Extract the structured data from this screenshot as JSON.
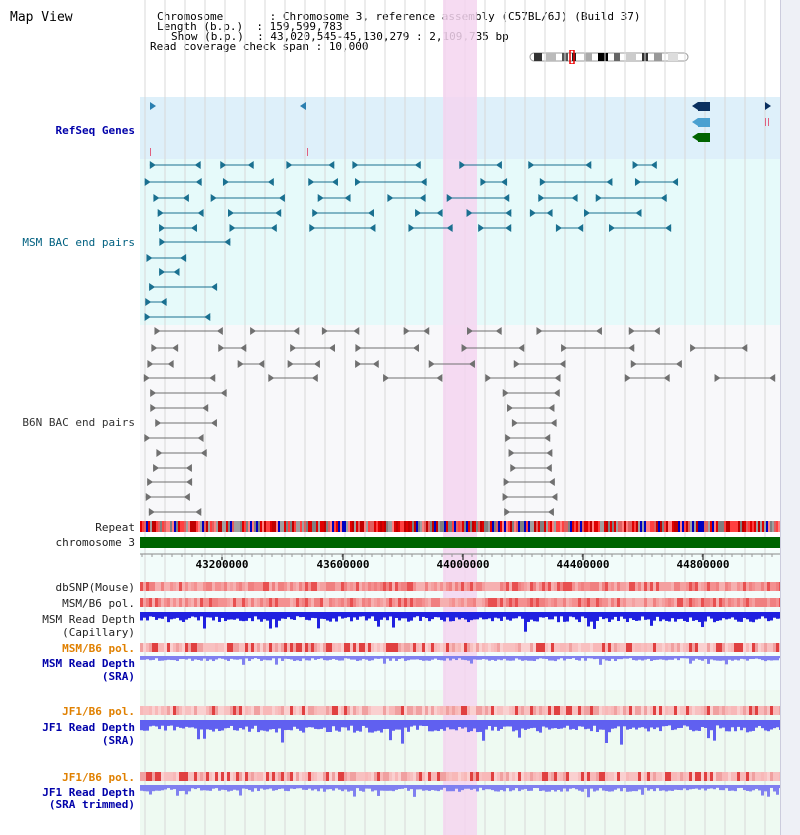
{
  "page_title": "Map View",
  "header": {
    "chromosome_label": "Chromosome       : ",
    "chromosome_value": "Chromosome 3, reference assembly (C57BL/6J) (Build 37)",
    "length_label": "Length (b.p.)  : ",
    "length_value": "159,599,783",
    "show_label": "Show (b.p.)  : ",
    "show_value": "43,020,545-45,130,279 : 2,109,735 bp",
    "coverage_label": "Read coverage check span : ",
    "coverage_value": "10,000"
  },
  "tracks": {
    "refseq": "RefSeq Genes",
    "msm_bac": "MSM BAC end pairs",
    "b6n_bac": "B6N BAC end pairs",
    "repeat": "Repeat",
    "chromosome": "chromosome 3",
    "dbsnp": "dbSNP(Mouse)",
    "msm_b6_pol_1": "MSM/B6 pol.",
    "msm_depth_cap_1": "MSM Read Depth",
    "msm_depth_cap_2": "(Capillary)",
    "msm_b6_pol_2": "MSM/B6 pol.",
    "msm_depth_sra_1": "MSM Read Depth",
    "msm_depth_sra_2": "(SRA)",
    "jf1_b6_pol_1": "JF1/B6 pol.",
    "jf1_depth_sra_1": "JF1 Read Depth",
    "jf1_depth_sra_2": "(SRA)",
    "jf1_b6_pol_2": "JF1/B6 pol.",
    "jf1_depth_trim_1": "JF1 Read Depth",
    "jf1_depth_trim_2": "(SRA trimmed)"
  },
  "axis_ticks": [
    "43200000",
    "43600000",
    "44000000",
    "44400000",
    "44800000"
  ],
  "colors": {
    "label_black": "#000000",
    "label_blue": "#0000aa",
    "label_teal": "#006080",
    "label_orange": "#e08000",
    "refseq_bg": "#def0fa",
    "msm_bg": "#e6fafa",
    "highlight": "#f5d5f0",
    "chromosome_bar": "#006400",
    "msm_feature": "#1a7090",
    "b6n_feature": "#707070"
  }
}
